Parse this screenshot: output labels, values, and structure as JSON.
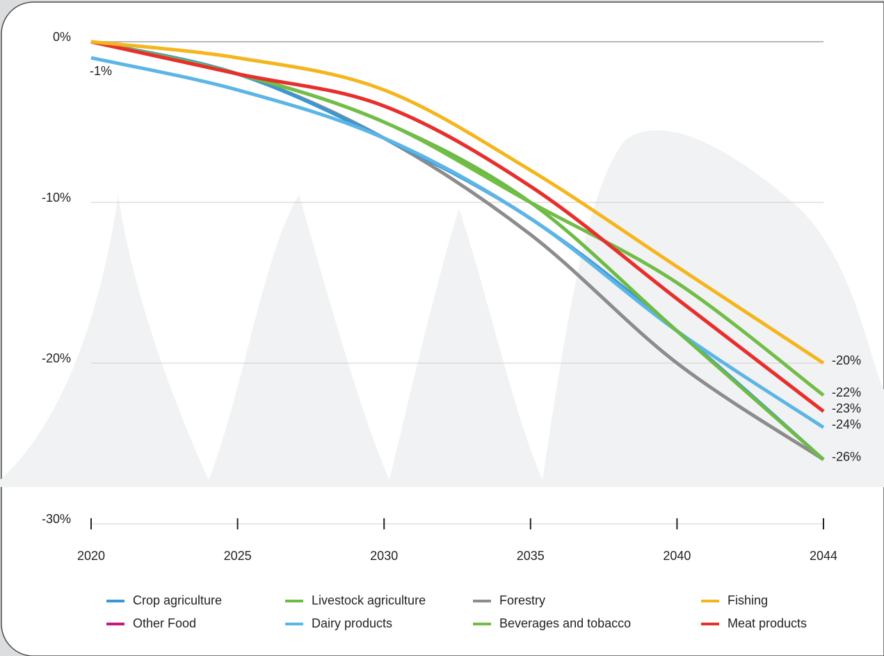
{
  "chart_data": {
    "type": "line",
    "categories": [
      "2020",
      "2025",
      "2030",
      "2035",
      "2040",
      "2044"
    ],
    "series": [
      {
        "name": "Crop agriculture",
        "color": "#3b97d3",
        "values": [
          0,
          -2,
          -6,
          -11,
          -18,
          -26
        ],
        "value_labels": [
          null,
          null,
          null,
          null,
          null,
          "-26%"
        ]
      },
      {
        "name": "Livestock agriculture",
        "color": "#6dbb45",
        "values": [
          0,
          -2,
          -5,
          -10,
          -18,
          -26
        ]
      },
      {
        "name": "Forestry",
        "color": "#8c8c8c",
        "values": [
          0,
          -2,
          -6,
          -12,
          -20,
          -26
        ]
      },
      {
        "name": "Fishing",
        "color": "#f5b51c",
        "values": [
          0,
          -1,
          -3,
          -8,
          -14,
          -20
        ],
        "value_labels": [
          null,
          null,
          null,
          null,
          null,
          "-20%"
        ]
      },
      {
        "name": "Other Food",
        "color": "#c8177d",
        "values": [
          0,
          -2,
          -4,
          -9,
          -16,
          -23
        ]
      },
      {
        "name": "Dairy products",
        "color": "#5cb5e6",
        "values": [
          -1,
          -3,
          -6,
          -11,
          -18,
          -24
        ],
        "value_labels": [
          "-1%",
          null,
          null,
          null,
          null,
          "-24%"
        ]
      },
      {
        "name": "Beverages and tobacco",
        "color": "#72bd47",
        "values": [
          0,
          -2,
          -5,
          -10,
          -15,
          -22
        ],
        "value_labels": [
          null,
          null,
          null,
          null,
          null,
          "-22%"
        ]
      },
      {
        "name": "Meat products",
        "color": "#e8302a",
        "values": [
          0,
          -2,
          -4,
          -9,
          -16,
          -23
        ],
        "value_labels": [
          null,
          null,
          null,
          null,
          null,
          "-23%"
        ]
      }
    ],
    "ylim": [
      -30,
      0
    ],
    "yticks": [
      {
        "value": 0,
        "label": "0%"
      },
      {
        "value": -10,
        "label": "-10%"
      },
      {
        "value": -20,
        "label": "-20%"
      },
      {
        "value": -30,
        "label": "-30%"
      }
    ],
    "grid": true
  }
}
